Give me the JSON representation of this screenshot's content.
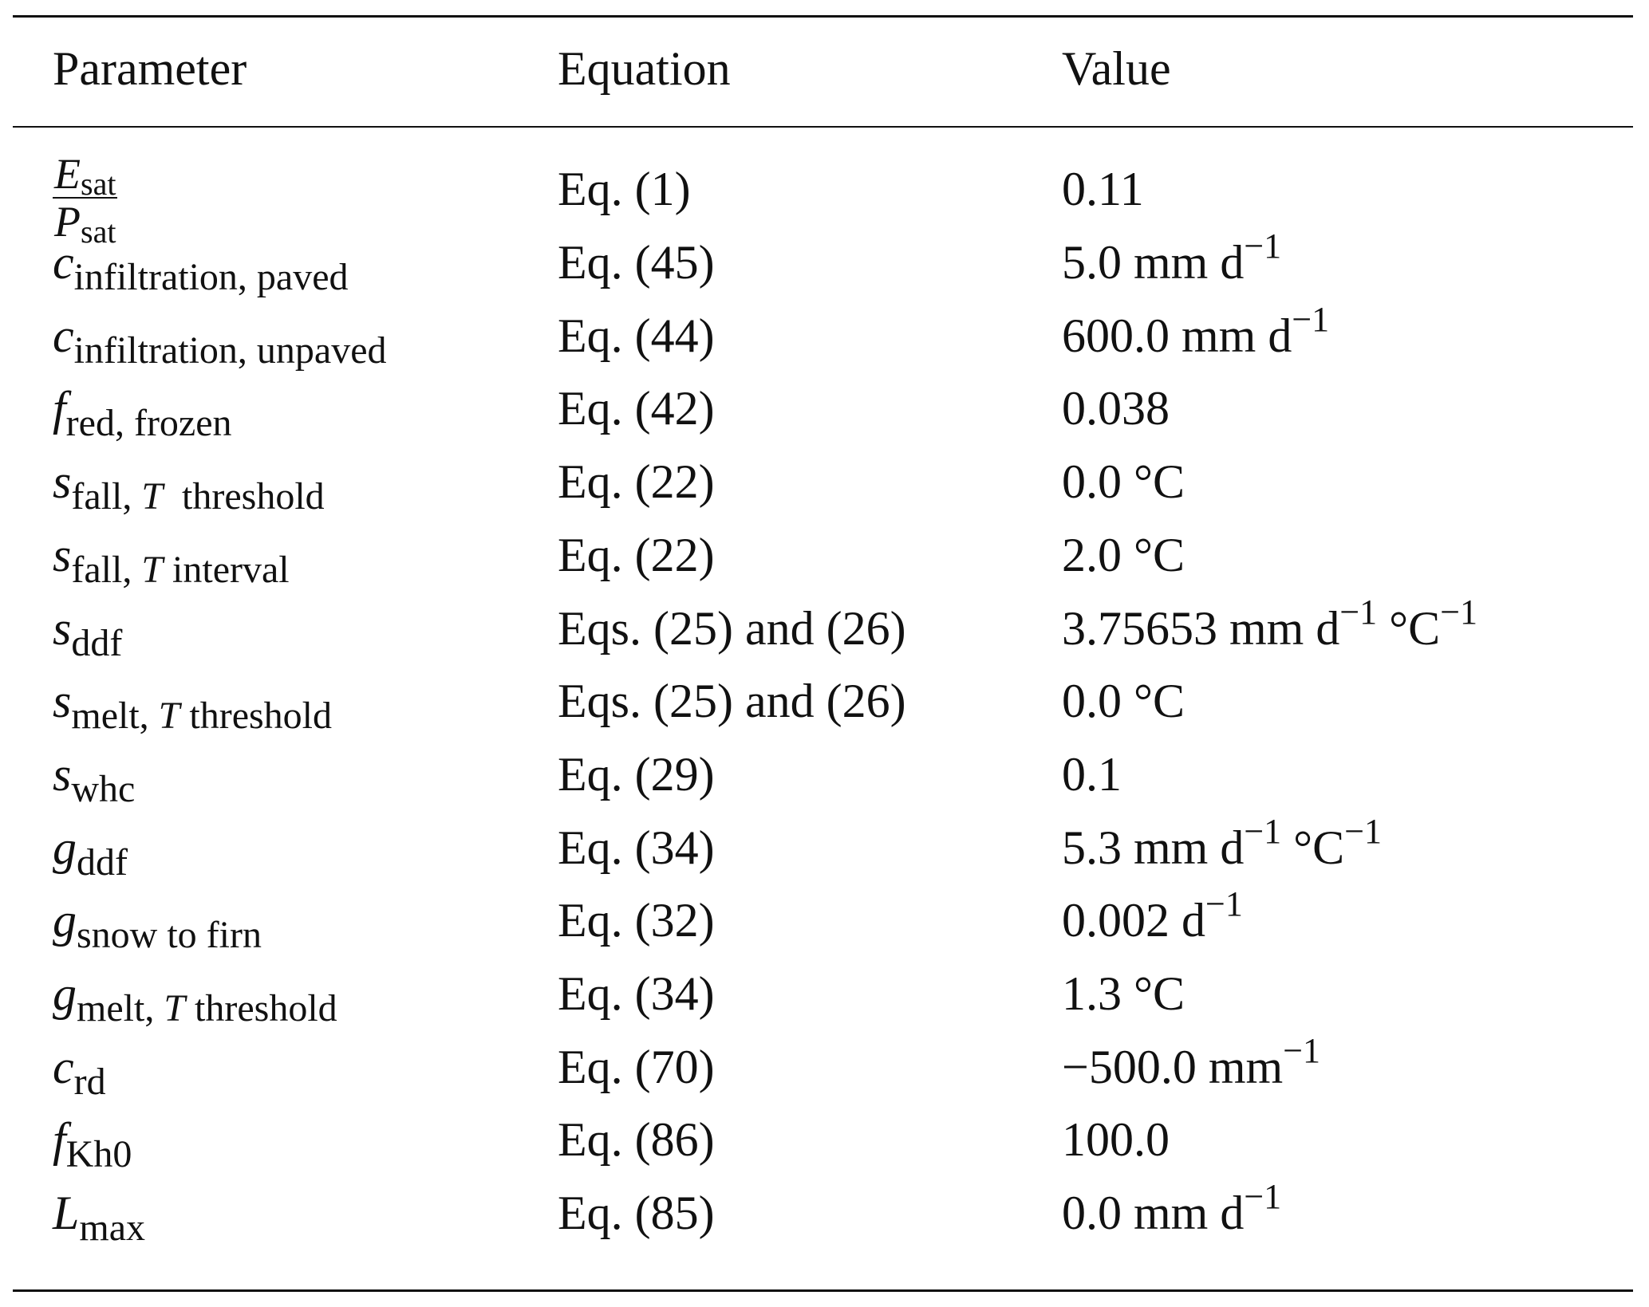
{
  "table": {
    "headers": {
      "parameter": "Parameter",
      "equation": "Equation",
      "value": "Value"
    },
    "first_row": {
      "numerator": {
        "symbol": "E",
        "sub": "sat"
      },
      "denominator": {
        "symbol": "P",
        "sub": "sat"
      },
      "equation": "Eq. (1)",
      "value": [
        {
          "t": "0.11"
        }
      ]
    },
    "rows": [
      {
        "symbol": "c",
        "sub": [
          {
            "t": "infiltration, paved"
          }
        ],
        "equation": "Eq. (45)",
        "value": [
          {
            "t": "5.0 mm d"
          },
          {
            "sup": "−1"
          }
        ]
      },
      {
        "symbol": "c",
        "sub": [
          {
            "t": "infiltration, unpaved"
          }
        ],
        "equation": "Eq. (44)",
        "value": [
          {
            "t": "600.0 mm d"
          },
          {
            "sup": "−1"
          }
        ]
      },
      {
        "symbol": "f",
        "sub": [
          {
            "t": "red, frozen"
          }
        ],
        "equation": "Eq. (42)",
        "value": [
          {
            "t": "0.038"
          }
        ]
      },
      {
        "symbol": "s",
        "sub": [
          {
            "t": "fall, "
          },
          {
            "i": "T"
          },
          {
            "t": "  threshold"
          }
        ],
        "equation": "Eq. (22)",
        "value": [
          {
            "t": "0.0 °C"
          }
        ]
      },
      {
        "symbol": "s",
        "sub": [
          {
            "t": "fall, "
          },
          {
            "i": "T"
          },
          {
            "t": " interval"
          }
        ],
        "equation": "Eq. (22)",
        "value": [
          {
            "t": "2.0 °C"
          }
        ]
      },
      {
        "symbol": "s",
        "sub": [
          {
            "t": "ddf"
          }
        ],
        "equation": "Eqs. (25) and (26)",
        "value": [
          {
            "t": "3.75653 mm d"
          },
          {
            "sup": "−1"
          },
          {
            "t": " °C"
          },
          {
            "sup": "−1"
          }
        ]
      },
      {
        "symbol": "s",
        "sub": [
          {
            "t": "melt, "
          },
          {
            "i": "T"
          },
          {
            "t": " threshold"
          }
        ],
        "equation": "Eqs. (25) and (26)",
        "value": [
          {
            "t": "0.0 °C"
          }
        ]
      },
      {
        "symbol": "s",
        "sub": [
          {
            "t": "whc"
          }
        ],
        "equation": "Eq. (29)",
        "value": [
          {
            "t": "0.1"
          }
        ]
      },
      {
        "symbol": "g",
        "sub": [
          {
            "t": "ddf"
          }
        ],
        "equation": "Eq. (34)",
        "value": [
          {
            "t": "5.3 mm d"
          },
          {
            "sup": "−1"
          },
          {
            "t": " °C"
          },
          {
            "sup": "−1"
          }
        ]
      },
      {
        "symbol": "g",
        "sub": [
          {
            "t": "snow to firn"
          }
        ],
        "equation": "Eq. (32)",
        "value": [
          {
            "t": "0.002 d"
          },
          {
            "sup": "−1"
          }
        ]
      },
      {
        "symbol": "g",
        "sub": [
          {
            "t": "melt, "
          },
          {
            "i": "T"
          },
          {
            "t": " threshold"
          }
        ],
        "equation": "Eq. (34)",
        "value": [
          {
            "t": "1.3 °C"
          }
        ]
      },
      {
        "symbol": "c",
        "sub": [
          {
            "t": "rd"
          }
        ],
        "equation": "Eq. (70)",
        "value": [
          {
            "t": "−500.0 mm"
          },
          {
            "sup": "−1"
          }
        ]
      },
      {
        "symbol": "f",
        "sub": [
          {
            "t": "Kh0"
          }
        ],
        "equation": "Eq. (86)",
        "value": [
          {
            "t": "100.0"
          }
        ]
      },
      {
        "symbol": "L",
        "sub": [
          {
            "t": "max"
          }
        ],
        "equation": "Eq. (85)",
        "value": [
          {
            "t": "0.0 mm d"
          },
          {
            "sup": "−1"
          }
        ]
      }
    ]
  }
}
